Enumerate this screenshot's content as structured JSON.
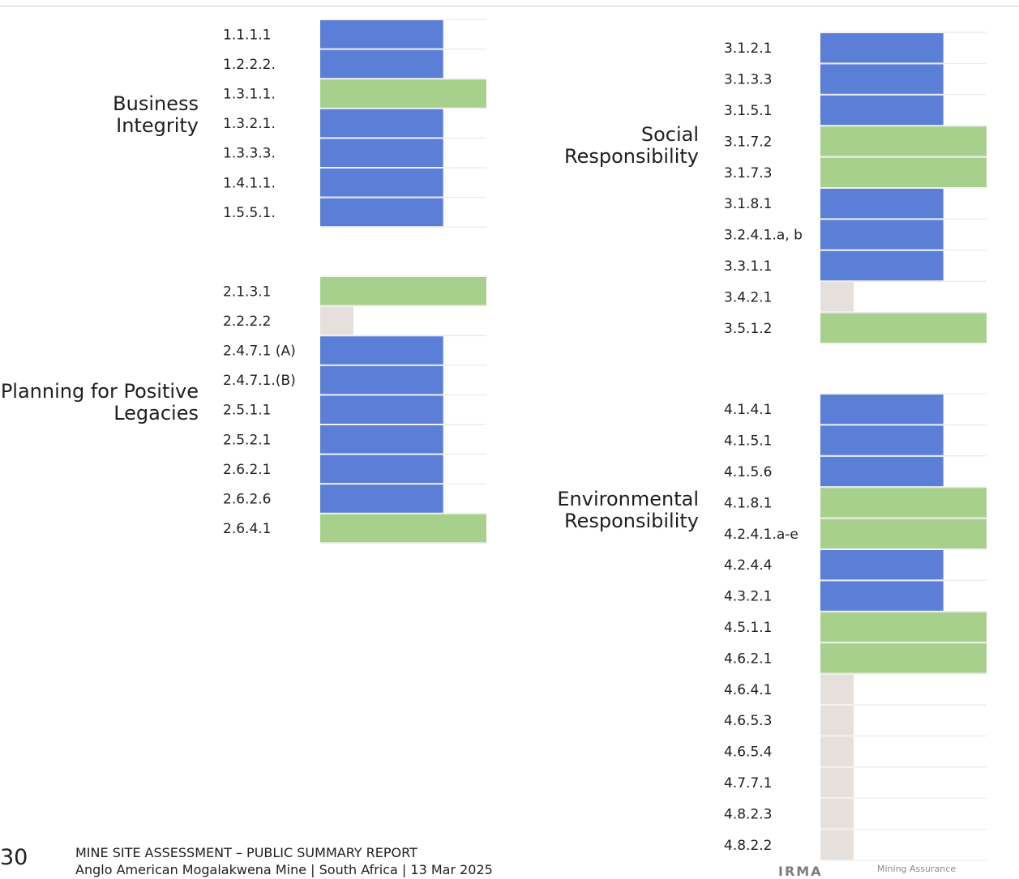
{
  "colors": {
    "blue": "#5b7fd6",
    "green": "#a8d08d",
    "grey": "#e5e0dc",
    "rule": "#e6e6e6"
  },
  "legend_levels": {
    "grey": 0.2,
    "blue": 0.74,
    "green": 1.0
  },
  "chart_data": [
    {
      "type": "bar",
      "title": "Business Integrity",
      "categories": [
        "1.1.1.1",
        "1.2.2.2.",
        "1.3.1.1.",
        "1.3.2.1.",
        "1.3.3.3.",
        "1.4.1.1.",
        "1.5.5.1."
      ],
      "levels": [
        "blue",
        "blue",
        "green",
        "blue",
        "blue",
        "blue",
        "blue"
      ]
    },
    {
      "type": "bar",
      "title": "Planning for Positive Legacies",
      "categories": [
        "2.1.3.1",
        "2.2.2.2",
        "2.4.7.1 (A)",
        "2.4.7.1.(B)",
        "2.5.1.1",
        "2.5.2.1",
        "2.6.2.1",
        "2.6.2.6",
        "2.6.4.1"
      ],
      "levels": [
        "green",
        "grey",
        "blue",
        "blue",
        "blue",
        "blue",
        "blue",
        "blue",
        "green"
      ]
    },
    {
      "type": "bar",
      "title": "Social Responsibility",
      "categories": [
        "3.1.2.1",
        "3.1.3.3",
        "3.1.5.1",
        "3.1.7.2",
        "3.1.7.3",
        "3.1.8.1",
        "3.2.4.1.a, b",
        "3.3.1.1",
        "3.4.2.1",
        "3.5.1.2"
      ],
      "levels": [
        "blue",
        "blue",
        "blue",
        "green",
        "green",
        "blue",
        "blue",
        "blue",
        "grey",
        "green"
      ]
    },
    {
      "type": "bar",
      "title": "Environmental Responsibility",
      "categories": [
        "4.1.4.1",
        "4.1.5.1",
        "4.1.5.6",
        "4.1.8.1",
        "4.2.4.1.a-e",
        "4.2.4.4",
        "4.3.2.1",
        "4.5.1.1",
        "4.6.2.1",
        "4.6.4.1",
        "4.6.5.3",
        "4.6.5.4",
        "4.7.7.1",
        "4.8.2.3",
        "4.8.2.2"
      ],
      "levels": [
        "blue",
        "blue",
        "blue",
        "green",
        "green",
        "blue",
        "blue",
        "green",
        "green",
        "grey",
        "grey",
        "grey",
        "grey",
        "grey",
        "grey"
      ]
    }
  ],
  "footer": {
    "page_number": "30",
    "title": "MINE SITE ASSESSMENT – PUBLIC SUMMARY REPORT",
    "subtitle": "Anglo American Mogalakwena Mine | South Africa | 13 Mar 2025",
    "logo_text": "IRMA",
    "logo_sub": "Mining Assurance"
  }
}
